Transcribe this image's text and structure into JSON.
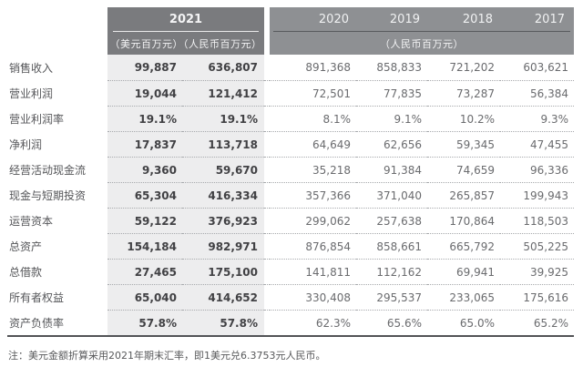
{
  "header": {
    "year_2021": "2021",
    "sub_2021": "（美元百万元）（人民币百万元）",
    "years": [
      "2020",
      "2019",
      "2018",
      "2017"
    ],
    "sub_years": "（人民币百万元）"
  },
  "colors": {
    "header_2021_bg": "#7a7b7e",
    "header_band_bg": "#8e9093",
    "stripe_2021_bg": "#ededee",
    "bottom_rule": "#525356"
  },
  "table": {
    "rows": [
      {
        "label": "销售收入",
        "values": [
          "99,887",
          "636,807",
          "891,368",
          "858,833",
          "721,202",
          "603,621"
        ]
      },
      {
        "label": "营业利润",
        "values": [
          "19,044",
          "121,412",
          "72,501",
          "77,835",
          "73,287",
          "56,384"
        ]
      },
      {
        "label": "营业利润率",
        "values": [
          "19.1%",
          "19.1%",
          "8.1%",
          "9.1%",
          "10.2%",
          "9.3%"
        ]
      },
      {
        "label": "净利润",
        "values": [
          "17,837",
          "113,718",
          "64,649",
          "62,656",
          "59,345",
          "47,455"
        ]
      },
      {
        "label": "经营活动现金流",
        "values": [
          "9,360",
          "59,670",
          "35,218",
          "91,384",
          "74,659",
          "96,336"
        ]
      },
      {
        "label": "现金与短期投资",
        "values": [
          "65,304",
          "416,334",
          "357,366",
          "371,040",
          "265,857",
          "199,943"
        ]
      },
      {
        "label": "运营资本",
        "values": [
          "59,122",
          "376,923",
          "299,062",
          "257,638",
          "170,864",
          "118,503"
        ]
      },
      {
        "label": "总资产",
        "values": [
          "154,184",
          "982,971",
          "876,854",
          "858,661",
          "665,792",
          "505,225"
        ]
      },
      {
        "label": "总借款",
        "values": [
          "27,465",
          "175,100",
          "141,811",
          "112,162",
          "69,941",
          "39,925"
        ]
      },
      {
        "label": "所有者权益",
        "values": [
          "65,040",
          "414,652",
          "330,408",
          "295,537",
          "233,065",
          "175,616"
        ]
      },
      {
        "label": "资产负债率",
        "values": [
          "57.8%",
          "57.8%",
          "62.3%",
          "65.6%",
          "65.0%",
          "65.2%"
        ]
      }
    ]
  },
  "note": "注：美元金额折算采用2021年期末汇率，即1美元兑6.3753元人民币。"
}
